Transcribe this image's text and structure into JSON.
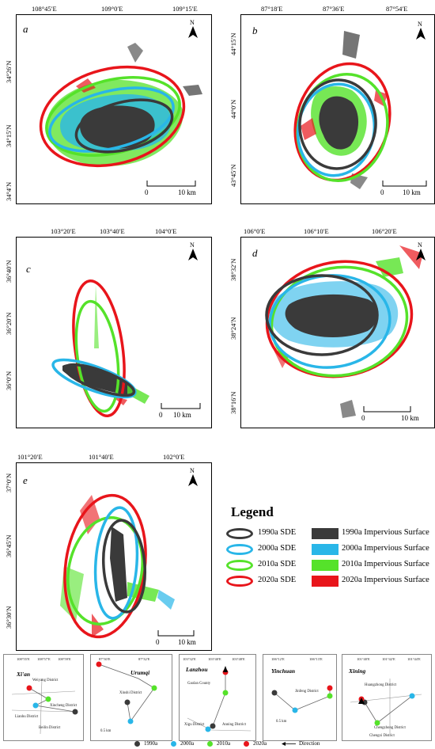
{
  "panels": {
    "a": {
      "label": "a",
      "x_ticks": [
        "108°45′E",
        "109°0′E",
        "109°15′E"
      ],
      "y_ticks": [
        "34°26′N",
        "34°15′N",
        "34°4′N"
      ],
      "scale": {
        "zero": "0",
        "dist": "10 km"
      }
    },
    "b": {
      "label": "b",
      "x_ticks": [
        "87°18′E",
        "87°36′E",
        "87°54′E"
      ],
      "y_ticks": [
        "44°15′N",
        "44°0′N",
        "43°45′N"
      ],
      "scale": {
        "zero": "0",
        "dist": "10 km"
      }
    },
    "c": {
      "label": "c",
      "x_ticks": [
        "103°20′E",
        "103°40′E",
        "104°0′E"
      ],
      "y_ticks": [
        "36°40′N",
        "36°20′N",
        "36°0′N"
      ],
      "scale": {
        "zero": "0",
        "dist": "10 km"
      }
    },
    "d": {
      "label": "d",
      "x_ticks": [
        "106°0′E",
        "106°10′E",
        "106°20′E"
      ],
      "y_ticks": [
        "38°32′N",
        "38°24′N",
        "38°16′N"
      ],
      "scale": {
        "zero": "0",
        "dist": "10 km"
      }
    },
    "e": {
      "label": "e",
      "x_ticks": [
        "101°20′E",
        "101°40′E",
        "102°0′E"
      ],
      "y_ticks": [
        "37°0′N",
        "36°45′N",
        "36°30′N"
      ],
      "scale": {
        "zero": "0",
        "dist": "10 km"
      }
    },
    "north_letter": "N"
  },
  "legend": {
    "title": "Legend",
    "items": [
      {
        "sde": "1990a SDE",
        "surface": "1990a Impervious Surface",
        "color": "#3a3a3a"
      },
      {
        "sde": "2000a SDE",
        "surface": "2000a Impervious Surface",
        "color": "#29b6e8"
      },
      {
        "sde": "2010a SDE",
        "surface": "2010a Impervious Surface",
        "color": "#55e22a"
      },
      {
        "sde": "2020a SDE",
        "surface": "2020a Impervious Surface",
        "color": "#e8151b"
      }
    ]
  },
  "mini_maps": [
    {
      "title": "Xi'an",
      "ticks_x": [
        "108°55′E",
        "108°57′E",
        "108°59′E"
      ],
      "districts": [
        "Weiyang District",
        "Lianhu District",
        "Xincheng District",
        "Beilin District"
      ]
    },
    {
      "title": "Urumqi",
      "ticks_x": [
        "87°30′E",
        "87°32′E"
      ],
      "districts": [
        "Xinshi District"
      ],
      "scale": "0.5 km"
    },
    {
      "title": "Lanzhou",
      "ticks_x": [
        "103°32′E",
        "103°40′E",
        "103°48′E"
      ],
      "districts": [
        "Gaolan County",
        "Xigu District",
        "Anning District"
      ]
    },
    {
      "title": "Yinchuan",
      "ticks_x": [
        "106°12′E",
        "106°13′E"
      ],
      "districts": [
        "Jinfeng District"
      ],
      "scale": "0.5 km"
    },
    {
      "title": "Xining",
      "ticks_x": [
        "101°40′E",
        "101°42′E",
        "101°44′E"
      ],
      "districts": [
        "Huangzhong District",
        "Chengzhong District",
        "Chengxi District"
      ]
    }
  ],
  "bottom_legend": {
    "items": [
      {
        "label": "1990a",
        "color": "#3a3a3a"
      },
      {
        "label": "2000a",
        "color": "#29b6e8"
      },
      {
        "label": "2010a",
        "color": "#55e22a"
      },
      {
        "label": "2020a",
        "color": "#e8151b"
      }
    ],
    "direction_label": "Direction"
  }
}
